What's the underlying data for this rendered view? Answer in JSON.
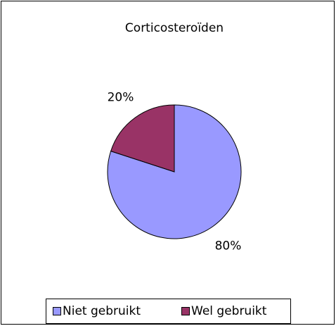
{
  "chart_data": {
    "type": "pie",
    "title": "Corticosteroïden",
    "categories": [
      "Niet gebruikt",
      "Wel gebruikt"
    ],
    "values": [
      80,
      20
    ],
    "value_labels": [
      "80%",
      "20%"
    ],
    "colors": [
      "#9999ff",
      "#993366"
    ],
    "legend": "bottom"
  }
}
